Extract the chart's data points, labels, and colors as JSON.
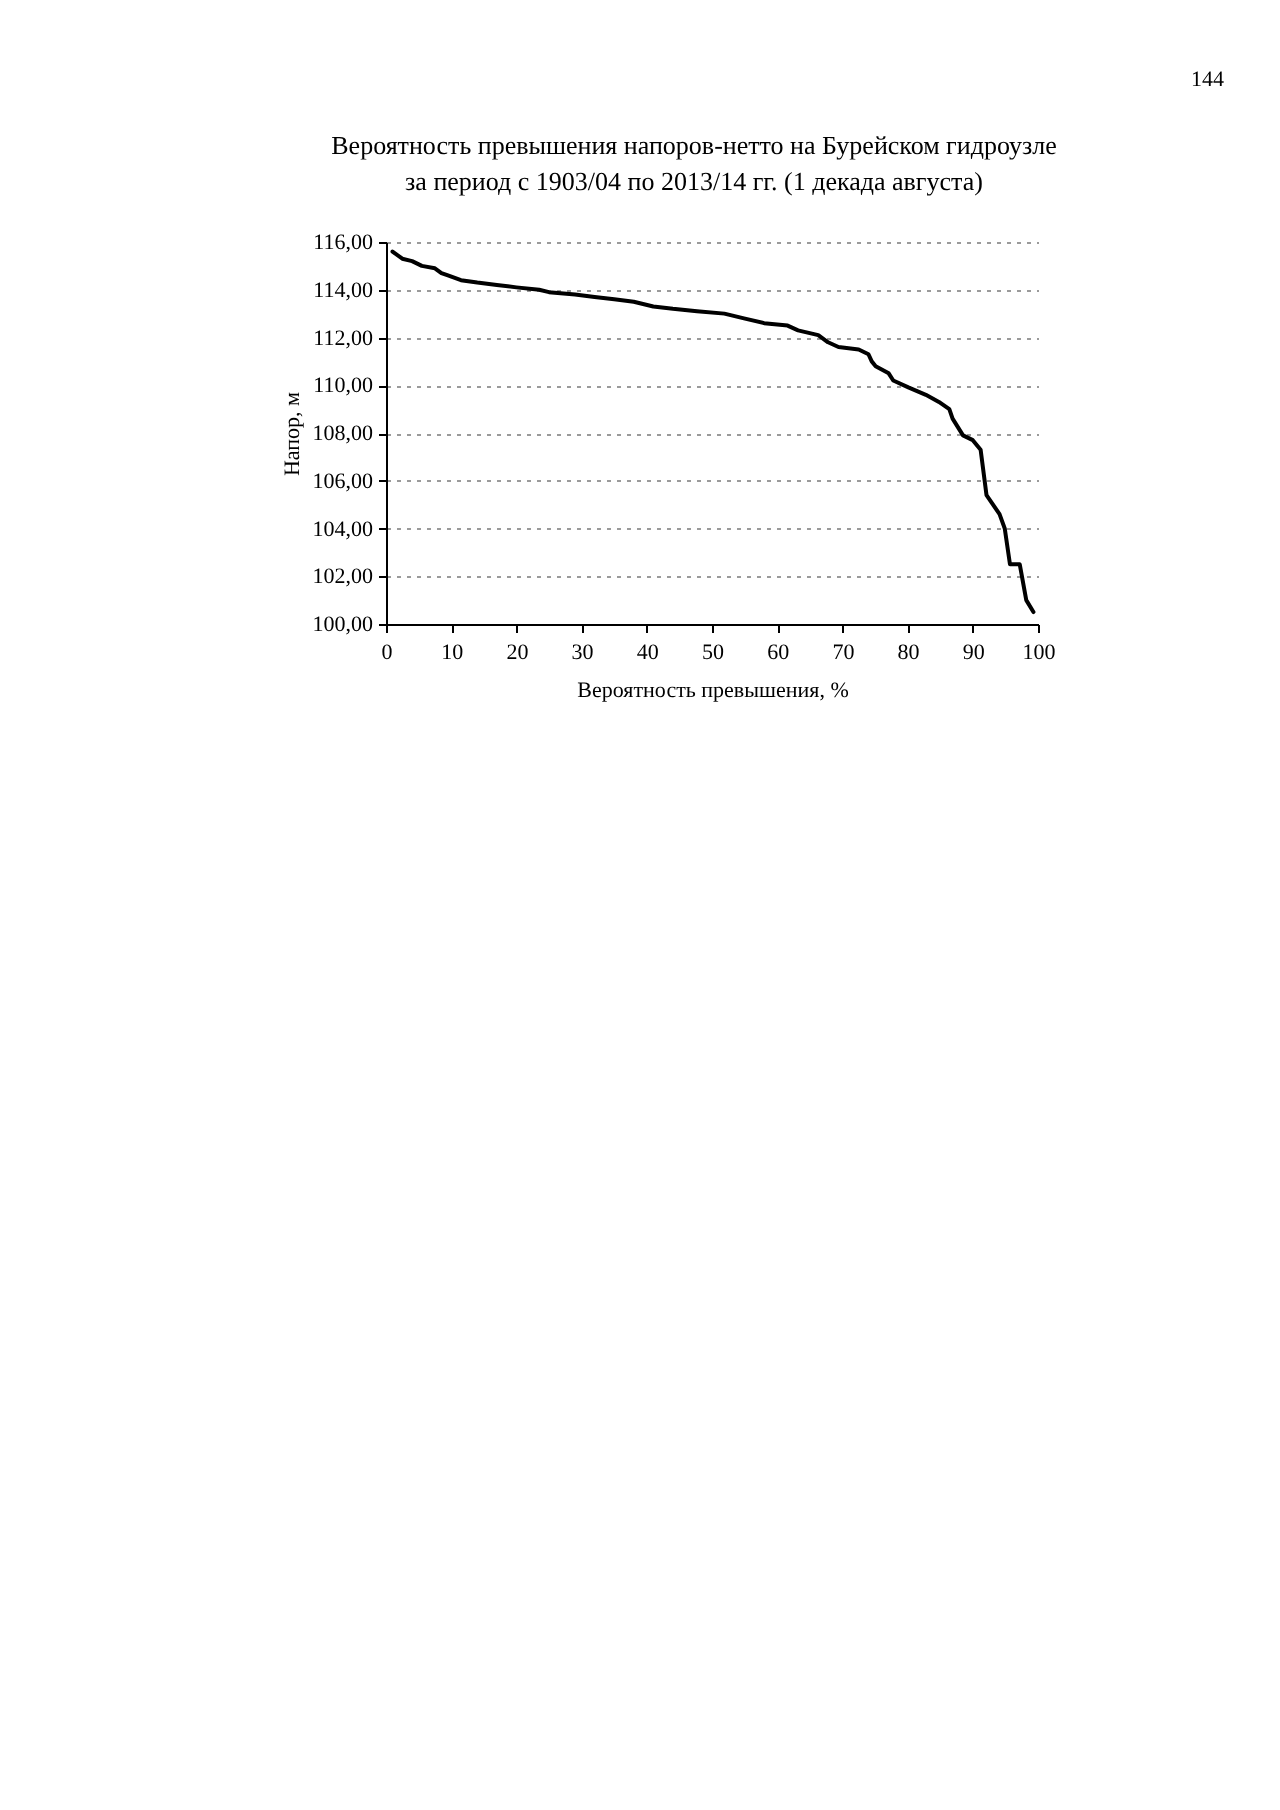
{
  "chart_data": {
    "type": "line",
    "title": "Вероятность превышения напоров-нетто на Бурейском гидроузле\nза период с 1903/04 по 2013/14 гг. (1 декада августа)",
    "xlabel": "Вероятность превышения, %",
    "ylabel": "Напор, м",
    "annotations": [
      "144"
    ],
    "x": [
      1.0,
      2.5,
      4.0,
      5.5,
      7.5,
      8.5,
      9.5,
      11.5,
      14.0,
      17.0,
      20.0,
      23.5,
      25.0,
      29.0,
      32.0,
      35.0,
      38.0,
      41.0,
      44.0,
      47.7,
      51.9,
      54.9,
      58.0,
      61.6,
      63.2,
      66.3,
      67.8,
      69.4,
      72.5,
      74.0,
      74.5,
      75.1,
      77.1,
      77.8,
      80.2,
      82.8,
      84.8,
      86.4,
      86.9,
      88.5,
      90.0,
      91.2,
      92.1,
      93.1,
      94.1,
      94.9,
      95.7,
      97.2,
      98.2,
      99.3
    ],
    "values": [
      115.6,
      115.3,
      115.2,
      115.0,
      114.9,
      114.7,
      114.6,
      114.4,
      114.3,
      114.2,
      114.1,
      114.0,
      113.9,
      113.8,
      113.7,
      113.6,
      113.5,
      113.3,
      113.2,
      113.1,
      113.0,
      112.8,
      112.6,
      112.5,
      112.3,
      112.1,
      111.8,
      111.6,
      111.5,
      111.3,
      111.0,
      110.8,
      110.5,
      110.2,
      109.9,
      109.6,
      109.3,
      109.0,
      108.6,
      107.9,
      107.7,
      107.3,
      105.4,
      105.0,
      104.6,
      104.0,
      102.5,
      102.5,
      101.0,
      100.5
    ],
    "color": "#000000",
    "line_style": "solid",
    "xlim": [
      0,
      100
    ],
    "xticks": [
      0,
      10,
      20,
      30,
      40,
      50,
      60,
      70,
      80,
      90,
      100
    ],
    "ylim": [
      100,
      116
    ],
    "yticks": [
      {
        "value": 100,
        "label": "100,00"
      },
      {
        "value": 102,
        "label": "102,00"
      },
      {
        "value": 104,
        "label": "104,00"
      },
      {
        "value": 106,
        "label": "106,00"
      },
      {
        "value": 108,
        "label": "108,00"
      },
      {
        "value": 110,
        "label": "110,00"
      },
      {
        "value": 112,
        "label": "112,00"
      },
      {
        "value": 114,
        "label": "114,00"
      },
      {
        "value": 116,
        "label": "116,00"
      }
    ],
    "grid": "y"
  }
}
